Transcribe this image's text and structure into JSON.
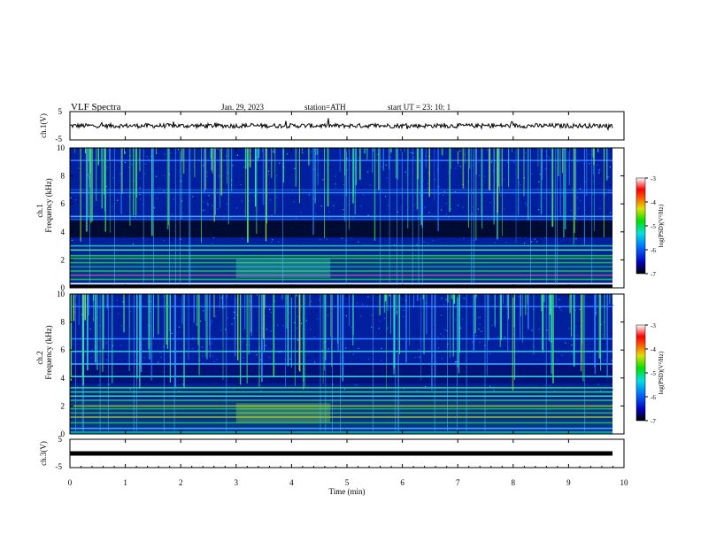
{
  "header": {
    "title": "VLF  Spectra",
    "date": "Jan. 29, 2023",
    "station": "station=ATH",
    "start": "start  UT  =    23: 10: 1"
  },
  "chart_data": [
    {
      "type": "line",
      "id": "ch1-waveform",
      "ylabel": "ch.1(V)",
      "ylim": [
        -5,
        5
      ],
      "yticks": [
        "5",
        "-5"
      ],
      "xlim": [
        0,
        10
      ],
      "baseline": 0.0,
      "color": "#000000"
    },
    {
      "type": "heatmap",
      "id": "ch1-spectrogram",
      "ylabel": "ch.1\nFrequency (kHz)",
      "ylim": [
        0,
        10
      ],
      "yticks": [
        "10",
        "8",
        "6",
        "4",
        "2",
        "0"
      ],
      "xlim": [
        0,
        9.8
      ],
      "colorbar": {
        "label": "log(PSD)(V²/Hz)",
        "range": [
          -7,
          -3
        ],
        "ticks": [
          "-3",
          "-4",
          "-5",
          "-6",
          "-7"
        ]
      }
    },
    {
      "type": "heatmap",
      "id": "ch2-spectrogram",
      "ylabel": "ch.2\nFrequency (kHz)",
      "ylim": [
        0,
        10
      ],
      "yticks": [
        "10",
        "8",
        "6",
        "4",
        "2",
        "0"
      ],
      "xlim": [
        0,
        9.8
      ],
      "colorbar": {
        "label": "log(PSD)(V²/Hz)",
        "range": [
          -7,
          -3
        ],
        "ticks": [
          "-3",
          "-4",
          "-5",
          "-6",
          "-7"
        ]
      }
    },
    {
      "type": "line",
      "id": "ch3-waveform",
      "ylabel": "ch.3(V)",
      "ylim": [
        -5,
        5
      ],
      "yticks": [
        "5",
        "-5"
      ],
      "xlim": [
        0,
        10
      ],
      "baseline": 0.0,
      "color": "#000000"
    }
  ],
  "xaxis": {
    "label": "Time  (min)",
    "ticks": [
      "0",
      "1",
      "2",
      "3",
      "4",
      "5",
      "6",
      "7",
      "8",
      "9",
      "10"
    ],
    "range": [
      0,
      10
    ]
  },
  "colors": {
    "background_dark": "#000a30",
    "spectrogram_base": "#0020a0",
    "band_green": "#20e060",
    "band_yellow": "#e0e020",
    "burst_cyan": "#30e0c0"
  }
}
